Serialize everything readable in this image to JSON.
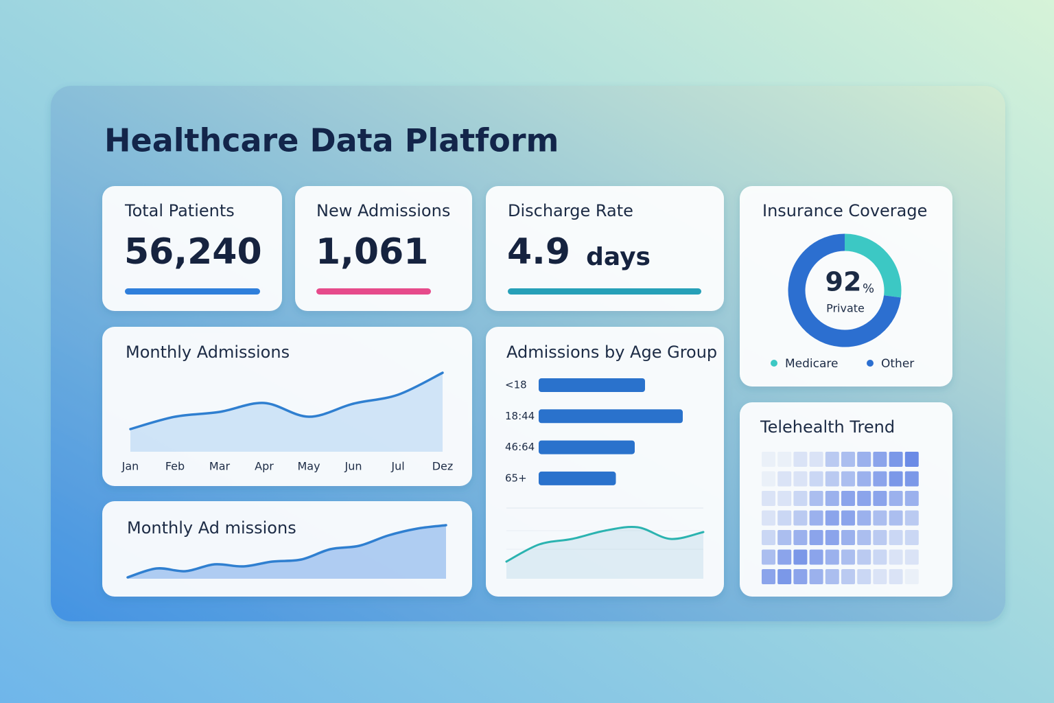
{
  "title": "Healthcare Data Platform",
  "kpis": [
    {
      "label": "Total Patients",
      "value": "56,240",
      "color": "#2f7fdb"
    },
    {
      "label": "New Admissions",
      "value": "1,061",
      "color": "#e64b8b"
    },
    {
      "label": "Discharge Rate",
      "value": "4.9",
      "unit": "days",
      "color": "#26a0b8"
    }
  ],
  "insurance": {
    "title": "Insurance Coverage",
    "value": 92,
    "unit": "%",
    "label": "Private",
    "segments": [
      {
        "name": "Medicare",
        "value": 27,
        "color": "#3cc8c4"
      },
      {
        "name": "Other",
        "value": 73,
        "color": "#2c6fd0"
      }
    ]
  },
  "monthly": {
    "type": "line",
    "title": "Monthly Admissions",
    "categories": [
      "Jan",
      "Feb",
      "Mar",
      "Apr",
      "May",
      "Jun",
      "Jul",
      "Dez"
    ],
    "values": [
      33,
      51,
      58,
      71,
      51,
      70,
      83,
      115
    ],
    "ylim": [
      0,
      120
    ],
    "color": "#2f7fd0"
  },
  "monthly2": {
    "type": "line",
    "title": "Monthly Ad missions",
    "values": [
      2,
      15,
      11,
      21,
      18,
      25,
      28,
      43,
      48,
      63,
      73,
      78
    ],
    "ylim": [
      0,
      80
    ],
    "color": "#2f7fd0"
  },
  "age": {
    "type": "bar",
    "title": "Admissions by Age Group",
    "categories": [
      "<18",
      "18:44",
      "46:64",
      "65+"
    ],
    "values": [
      62,
      84,
      56,
      45
    ],
    "xlim": [
      0,
      100
    ],
    "color": "#2a72cc",
    "trend": {
      "type": "line",
      "values": [
        25,
        50,
        58,
        70,
        75,
        58,
        68
      ],
      "ylim": [
        0,
        100
      ],
      "color": "#2bb3b0"
    }
  },
  "telehealth": {
    "type": "heatmap",
    "title": "Telehealth Trend",
    "scale": [
      0,
      8
    ],
    "colors": [
      "#eaf0f8",
      "#6b8be6"
    ],
    "cells": [
      [
        0,
        0,
        1,
        1,
        3,
        4,
        5,
        6,
        7,
        8
      ],
      [
        0,
        1,
        1,
        2,
        3,
        4,
        5,
        6,
        7,
        7
      ],
      [
        1,
        1,
        2,
        4,
        5,
        6,
        6,
        6,
        5,
        5
      ],
      [
        1,
        2,
        3,
        5,
        6,
        6,
        5,
        4,
        4,
        3
      ],
      [
        2,
        4,
        5,
        6,
        6,
        5,
        4,
        3,
        2,
        2
      ],
      [
        4,
        6,
        7,
        6,
        5,
        4,
        3,
        2,
        1,
        1
      ],
      [
        6,
        7,
        6,
        5,
        4,
        3,
        2,
        1,
        1,
        0
      ]
    ]
  }
}
